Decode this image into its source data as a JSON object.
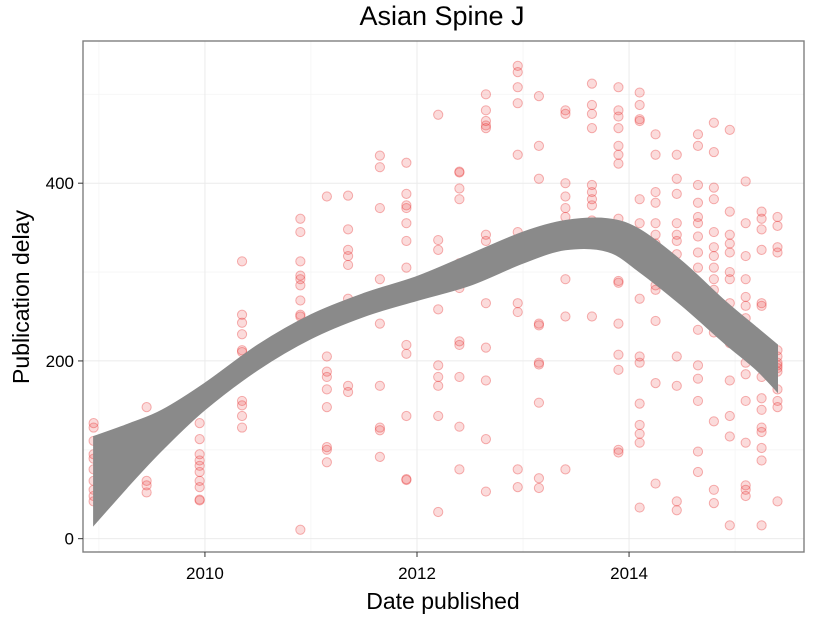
{
  "chart_data": {
    "type": "scatter",
    "title": "Asian Spine J",
    "xlabel": "Date published",
    "ylabel": "Publication delay",
    "x_ticks": [
      2010,
      2012,
      2014
    ],
    "y_ticks": [
      0,
      200,
      400
    ],
    "x_range": [
      2008.85,
      2015.65
    ],
    "y_range": [
      -15,
      560
    ],
    "grid": true,
    "colors": {
      "points": "#e62828",
      "band": "#8a8a8a",
      "panel_border": "#7f7f7f"
    },
    "points_note": "",
    "points": [
      [
        2008.95,
        130
      ],
      [
        2008.95,
        125
      ],
      [
        2008.95,
        110
      ],
      [
        2008.95,
        95
      ],
      [
        2008.95,
        90
      ],
      [
        2008.95,
        78
      ],
      [
        2008.95,
        65
      ],
      [
        2008.95,
        55
      ],
      [
        2008.95,
        48
      ],
      [
        2008.95,
        42
      ],
      [
        2009.45,
        148
      ],
      [
        2009.45,
        125
      ],
      [
        2009.45,
        110
      ],
      [
        2009.45,
        65
      ],
      [
        2009.45,
        60
      ],
      [
        2009.45,
        52
      ],
      [
        2009.95,
        130
      ],
      [
        2009.95,
        112
      ],
      [
        2009.95,
        95
      ],
      [
        2009.95,
        88
      ],
      [
        2009.95,
        82
      ],
      [
        2009.95,
        75
      ],
      [
        2009.95,
        65
      ],
      [
        2009.95,
        58
      ],
      [
        2009.95,
        44
      ],
      [
        2009.95,
        43
      ],
      [
        2010.35,
        312
      ],
      [
        2010.35,
        252
      ],
      [
        2010.35,
        243
      ],
      [
        2010.35,
        230
      ],
      [
        2010.35,
        212
      ],
      [
        2010.35,
        210
      ],
      [
        2010.35,
        155
      ],
      [
        2010.35,
        150
      ],
      [
        2010.35,
        138
      ],
      [
        2010.35,
        125
      ],
      [
        2010.9,
        360
      ],
      [
        2010.9,
        345
      ],
      [
        2010.9,
        312
      ],
      [
        2010.9,
        296
      ],
      [
        2010.9,
        292
      ],
      [
        2010.9,
        285
      ],
      [
        2010.9,
        268
      ],
      [
        2010.9,
        252
      ],
      [
        2010.9,
        250
      ],
      [
        2010.9,
        235
      ],
      [
        2010.9,
        10
      ],
      [
        2011.15,
        385
      ],
      [
        2011.15,
        240
      ],
      [
        2011.15,
        205
      ],
      [
        2011.15,
        188
      ],
      [
        2011.15,
        182
      ],
      [
        2011.15,
        168
      ],
      [
        2011.15,
        148
      ],
      [
        2011.15,
        103
      ],
      [
        2011.15,
        100
      ],
      [
        2011.15,
        86
      ],
      [
        2011.35,
        386
      ],
      [
        2011.35,
        348
      ],
      [
        2011.35,
        325
      ],
      [
        2011.35,
        318
      ],
      [
        2011.35,
        308
      ],
      [
        2011.35,
        270
      ],
      [
        2011.35,
        250
      ],
      [
        2011.35,
        172
      ],
      [
        2011.35,
        165
      ],
      [
        2011.65,
        431
      ],
      [
        2011.65,
        418
      ],
      [
        2011.65,
        372
      ],
      [
        2011.65,
        292
      ],
      [
        2011.65,
        242
      ],
      [
        2011.65,
        172
      ],
      [
        2011.65,
        125
      ],
      [
        2011.65,
        122
      ],
      [
        2011.65,
        92
      ],
      [
        2011.9,
        423
      ],
      [
        2011.9,
        388
      ],
      [
        2011.9,
        375
      ],
      [
        2011.9,
        372
      ],
      [
        2011.9,
        355
      ],
      [
        2011.9,
        335
      ],
      [
        2011.9,
        305
      ],
      [
        2011.9,
        218
      ],
      [
        2011.9,
        208
      ],
      [
        2011.9,
        138
      ],
      [
        2011.9,
        67
      ],
      [
        2011.9,
        66
      ],
      [
        2012.2,
        477
      ],
      [
        2012.2,
        336
      ],
      [
        2012.2,
        325
      ],
      [
        2012.2,
        298
      ],
      [
        2012.2,
        282
      ],
      [
        2012.2,
        258
      ],
      [
        2012.2,
        195
      ],
      [
        2012.2,
        182
      ],
      [
        2012.2,
        172
      ],
      [
        2012.2,
        138
      ],
      [
        2012.2,
        30
      ],
      [
        2012.4,
        413
      ],
      [
        2012.4,
        412
      ],
      [
        2012.4,
        394
      ],
      [
        2012.4,
        382
      ],
      [
        2012.4,
        310
      ],
      [
        2012.4,
        282
      ],
      [
        2012.4,
        222
      ],
      [
        2012.4,
        218
      ],
      [
        2012.4,
        182
      ],
      [
        2012.4,
        126
      ],
      [
        2012.4,
        78
      ],
      [
        2012.65,
        500
      ],
      [
        2012.65,
        482
      ],
      [
        2012.65,
        470
      ],
      [
        2012.65,
        465
      ],
      [
        2012.65,
        462
      ],
      [
        2012.65,
        342
      ],
      [
        2012.65,
        335
      ],
      [
        2012.65,
        302
      ],
      [
        2012.65,
        265
      ],
      [
        2012.65,
        215
      ],
      [
        2012.65,
        178
      ],
      [
        2012.65,
        112
      ],
      [
        2012.65,
        53
      ],
      [
        2012.95,
        532
      ],
      [
        2012.95,
        525
      ],
      [
        2012.95,
        508
      ],
      [
        2012.95,
        490
      ],
      [
        2012.95,
        432
      ],
      [
        2012.95,
        345
      ],
      [
        2012.95,
        332
      ],
      [
        2012.95,
        265
      ],
      [
        2012.95,
        255
      ],
      [
        2012.95,
        78
      ],
      [
        2012.95,
        58
      ],
      [
        2013.15,
        498
      ],
      [
        2013.15,
        442
      ],
      [
        2013.15,
        405
      ],
      [
        2013.15,
        338
      ],
      [
        2013.15,
        242
      ],
      [
        2013.15,
        240
      ],
      [
        2013.15,
        198
      ],
      [
        2013.15,
        196
      ],
      [
        2013.15,
        153
      ],
      [
        2013.15,
        68
      ],
      [
        2013.15,
        57
      ],
      [
        2013.4,
        482
      ],
      [
        2013.4,
        478
      ],
      [
        2013.4,
        400
      ],
      [
        2013.4,
        385
      ],
      [
        2013.4,
        372
      ],
      [
        2013.4,
        362
      ],
      [
        2013.4,
        345
      ],
      [
        2013.4,
        292
      ],
      [
        2013.4,
        250
      ],
      [
        2013.4,
        78
      ],
      [
        2013.65,
        512
      ],
      [
        2013.65,
        488
      ],
      [
        2013.65,
        478
      ],
      [
        2013.65,
        462
      ],
      [
        2013.65,
        398
      ],
      [
        2013.65,
        390
      ],
      [
        2013.65,
        382
      ],
      [
        2013.65,
        375
      ],
      [
        2013.65,
        358
      ],
      [
        2013.65,
        345
      ],
      [
        2013.65,
        250
      ],
      [
        2013.9,
        508
      ],
      [
        2013.9,
        482
      ],
      [
        2013.9,
        475
      ],
      [
        2013.9,
        462
      ],
      [
        2013.9,
        442
      ],
      [
        2013.9,
        432
      ],
      [
        2013.9,
        422
      ],
      [
        2013.9,
        360
      ],
      [
        2013.9,
        348
      ],
      [
        2013.9,
        290
      ],
      [
        2013.9,
        288
      ],
      [
        2013.9,
        242
      ],
      [
        2013.9,
        207
      ],
      [
        2013.9,
        190
      ],
      [
        2013.9,
        100
      ],
      [
        2013.9,
        97
      ],
      [
        2014.1,
        502
      ],
      [
        2014.1,
        488
      ],
      [
        2014.1,
        472
      ],
      [
        2014.1,
        470
      ],
      [
        2014.1,
        382
      ],
      [
        2014.1,
        355
      ],
      [
        2014.1,
        338
      ],
      [
        2014.1,
        270
      ],
      [
        2014.1,
        205
      ],
      [
        2014.1,
        198
      ],
      [
        2014.1,
        152
      ],
      [
        2014.1,
        128
      ],
      [
        2014.1,
        118
      ],
      [
        2014.1,
        108
      ],
      [
        2014.1,
        35
      ],
      [
        2014.25,
        455
      ],
      [
        2014.25,
        432
      ],
      [
        2014.25,
        390
      ],
      [
        2014.25,
        378
      ],
      [
        2014.25,
        355
      ],
      [
        2014.25,
        342
      ],
      [
        2014.25,
        332
      ],
      [
        2014.25,
        285
      ],
      [
        2014.25,
        280
      ],
      [
        2014.25,
        245
      ],
      [
        2014.25,
        175
      ],
      [
        2014.25,
        62
      ],
      [
        2014.45,
        432
      ],
      [
        2014.45,
        405
      ],
      [
        2014.45,
        388
      ],
      [
        2014.45,
        355
      ],
      [
        2014.45,
        342
      ],
      [
        2014.45,
        335
      ],
      [
        2014.45,
        320
      ],
      [
        2014.45,
        305
      ],
      [
        2014.45,
        300
      ],
      [
        2014.45,
        205
      ],
      [
        2014.45,
        172
      ],
      [
        2014.45,
        42
      ],
      [
        2014.45,
        32
      ],
      [
        2014.65,
        455
      ],
      [
        2014.65,
        442
      ],
      [
        2014.65,
        398
      ],
      [
        2014.65,
        378
      ],
      [
        2014.65,
        362
      ],
      [
        2014.65,
        355
      ],
      [
        2014.65,
        340
      ],
      [
        2014.65,
        322
      ],
      [
        2014.65,
        305
      ],
      [
        2014.65,
        280
      ],
      [
        2014.65,
        235
      ],
      [
        2014.65,
        195
      ],
      [
        2014.65,
        180
      ],
      [
        2014.65,
        155
      ],
      [
        2014.65,
        98
      ],
      [
        2014.65,
        75
      ],
      [
        2014.8,
        468
      ],
      [
        2014.8,
        435
      ],
      [
        2014.8,
        395
      ],
      [
        2014.8,
        382
      ],
      [
        2014.8,
        345
      ],
      [
        2014.8,
        328
      ],
      [
        2014.8,
        318
      ],
      [
        2014.8,
        305
      ],
      [
        2014.8,
        292
      ],
      [
        2014.8,
        280
      ],
      [
        2014.8,
        272
      ],
      [
        2014.8,
        258
      ],
      [
        2014.8,
        232
      ],
      [
        2014.8,
        132
      ],
      [
        2014.8,
        55
      ],
      [
        2014.8,
        40
      ],
      [
        2014.95,
        460
      ],
      [
        2014.95,
        368
      ],
      [
        2014.95,
        342
      ],
      [
        2014.95,
        332
      ],
      [
        2014.95,
        322
      ],
      [
        2014.95,
        300
      ],
      [
        2014.95,
        292
      ],
      [
        2014.95,
        265
      ],
      [
        2014.95,
        248
      ],
      [
        2014.95,
        220
      ],
      [
        2014.95,
        178
      ],
      [
        2014.95,
        138
      ],
      [
        2014.95,
        115
      ],
      [
        2014.95,
        15
      ],
      [
        2015.1,
        402
      ],
      [
        2015.1,
        355
      ],
      [
        2015.1,
        318
      ],
      [
        2015.1,
        292
      ],
      [
        2015.1,
        272
      ],
      [
        2015.1,
        262
      ],
      [
        2015.1,
        248
      ],
      [
        2015.1,
        218
      ],
      [
        2015.1,
        198
      ],
      [
        2015.1,
        185
      ],
      [
        2015.1,
        155
      ],
      [
        2015.1,
        108
      ],
      [
        2015.1,
        60
      ],
      [
        2015.1,
        55
      ],
      [
        2015.1,
        48
      ],
      [
        2015.25,
        368
      ],
      [
        2015.25,
        360
      ],
      [
        2015.25,
        348
      ],
      [
        2015.25,
        325
      ],
      [
        2015.25,
        265
      ],
      [
        2015.25,
        262
      ],
      [
        2015.25,
        222
      ],
      [
        2015.25,
        215
      ],
      [
        2015.25,
        208
      ],
      [
        2015.25,
        182
      ],
      [
        2015.25,
        158
      ],
      [
        2015.25,
        145
      ],
      [
        2015.25,
        125
      ],
      [
        2015.25,
        120
      ],
      [
        2015.25,
        102
      ],
      [
        2015.25,
        88
      ],
      [
        2015.25,
        15
      ],
      [
        2015.4,
        362
      ],
      [
        2015.4,
        352
      ],
      [
        2015.4,
        328
      ],
      [
        2015.4,
        322
      ],
      [
        2015.4,
        212
      ],
      [
        2015.4,
        205
      ],
      [
        2015.4,
        198
      ],
      [
        2015.4,
        195
      ],
      [
        2015.4,
        192
      ],
      [
        2015.4,
        188
      ],
      [
        2015.4,
        168
      ],
      [
        2015.4,
        155
      ],
      [
        2015.4,
        148
      ],
      [
        2015.4,
        42
      ]
    ],
    "smooth_band": {
      "x": [
        2008.95,
        2009.3,
        2009.6,
        2010.0,
        2010.5,
        2011.0,
        2011.5,
        2012.0,
        2012.5,
        2013.0,
        2013.4,
        2013.8,
        2014.1,
        2014.5,
        2014.9,
        2015.2,
        2015.4
      ],
      "lower": [
        15,
        62,
        100,
        145,
        190,
        225,
        250,
        268,
        285,
        310,
        325,
        323,
        300,
        262,
        220,
        190,
        165
      ],
      "upper": [
        115,
        130,
        145,
        175,
        218,
        252,
        276,
        295,
        320,
        345,
        358,
        360,
        348,
        312,
        268,
        238,
        218
      ]
    }
  }
}
